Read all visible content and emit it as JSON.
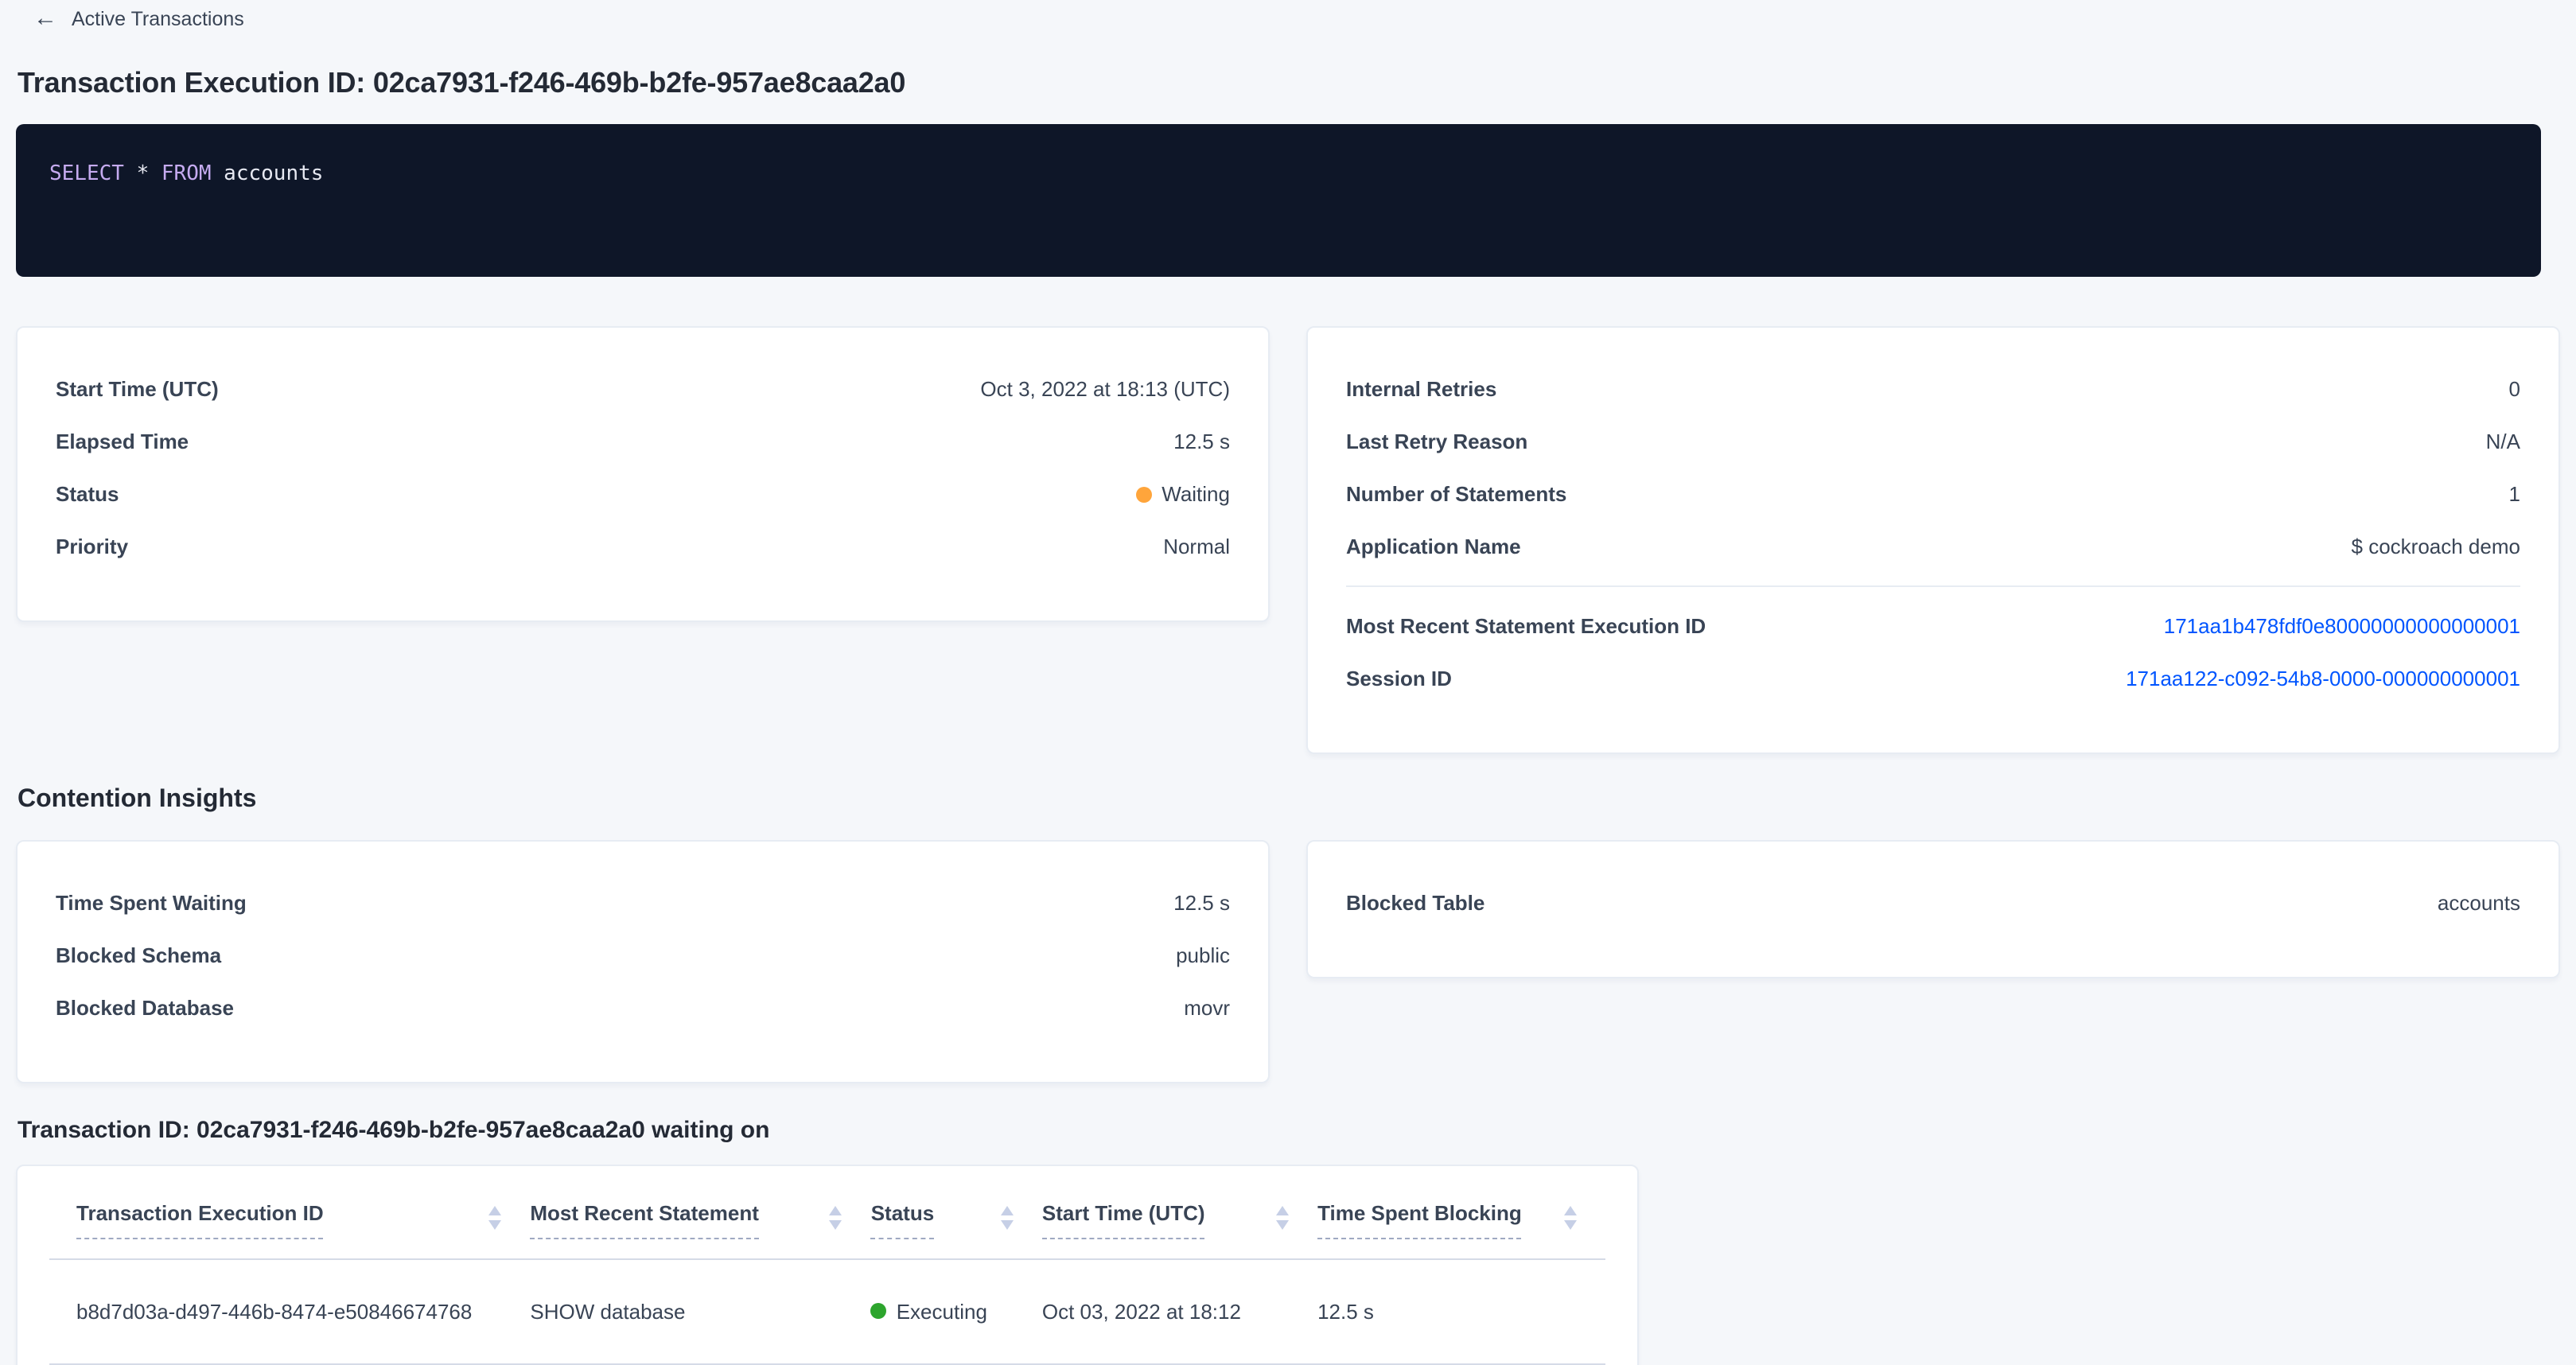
{
  "colors": {
    "link_blue": "#0055ff",
    "status_waiting_dot": "#ffa53b",
    "status_executing_dot": "#2da52d",
    "code_keyword": "#c5abf0",
    "code_background": "#0e1628"
  },
  "header": {
    "back_label": "Active Transactions",
    "back_arrow": "←",
    "title": "Transaction Execution ID: 02ca7931-f246-469b-b2fe-957ae8caa2a0"
  },
  "sql": {
    "tokens": [
      "SELECT",
      " * ",
      "FROM",
      " accounts"
    ]
  },
  "transaction_card": {
    "rows": [
      {
        "label": "Start Time (UTC)",
        "value": "Oct 3, 2022 at 18:13 (UTC)"
      },
      {
        "label": "Elapsed Time",
        "value": "12.5 s"
      },
      {
        "label": "Status",
        "value": "Waiting"
      },
      {
        "label": "Priority",
        "value": "Normal"
      }
    ]
  },
  "execution_card": {
    "rows": [
      {
        "label": "Internal Retries",
        "value": "0"
      },
      {
        "label": "Last Retry Reason",
        "value": "N/A"
      },
      {
        "label": "Number of Statements",
        "value": "1"
      },
      {
        "label": "Application Name",
        "value": "$ cockroach demo"
      }
    ],
    "links": [
      {
        "label": "Most Recent Statement Execution ID",
        "value": "171aa1b478fdf0e80000000000000001"
      },
      {
        "label": "Session ID",
        "value": "171aa122-c092-54b8-0000-000000000001"
      }
    ]
  },
  "contention": {
    "heading": "Contention Insights",
    "left_rows": [
      {
        "label": "Time Spent Waiting",
        "value": "12.5 s"
      },
      {
        "label": "Blocked Schema",
        "value": "public"
      },
      {
        "label": "Blocked Database",
        "value": "movr"
      }
    ],
    "right_rows": [
      {
        "label": "Blocked Table",
        "value": "accounts"
      }
    ]
  },
  "waiting_table": {
    "heading": "Transaction ID: 02ca7931-f246-469b-b2fe-957ae8caa2a0 waiting on",
    "columns": [
      "Transaction Execution ID",
      "Most Recent Statement",
      "Status",
      "Start Time (UTC)",
      "Time Spent Blocking"
    ],
    "rows": [
      {
        "execution_id": "b8d7d03a-d497-446b-8474-e50846674768",
        "statement": "SHOW database",
        "status": "Executing",
        "start_time": "Oct 03, 2022 at 18:12",
        "time_blocking": "12.5 s"
      }
    ]
  }
}
